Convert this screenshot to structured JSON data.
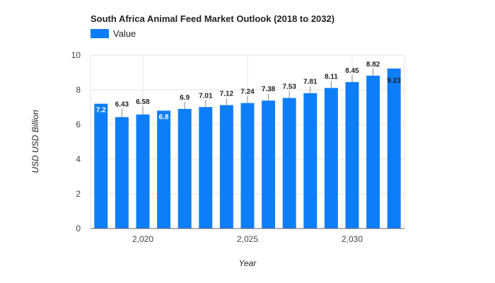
{
  "chart_data": {
    "type": "bar",
    "title": "South Africa Animal Feed Market Outlook (2018 to 2032)",
    "xlabel": "Year",
    "ylabel": "USD USD Billion",
    "legend": {
      "position": "top-left",
      "entries": [
        "Value"
      ]
    },
    "grid": true,
    "ylim": [
      0,
      10
    ],
    "yticks": [
      0,
      2,
      4,
      6,
      8,
      10
    ],
    "xlim": [
      2017.5,
      2032.5
    ],
    "xticks": [
      2020,
      2025,
      2030
    ],
    "xtick_labels": [
      "2,020",
      "2,025",
      "2,030"
    ],
    "colors": {
      "bar": "#0d7ef7",
      "grid": "#e6e6e6",
      "axis": "#666666"
    },
    "series": [
      {
        "name": "Value",
        "x": [
          2018,
          2019,
          2020,
          2021,
          2022,
          2023,
          2024,
          2025,
          2026,
          2027,
          2028,
          2029,
          2030,
          2031,
          2032
        ],
        "values": [
          7.2,
          6.43,
          6.58,
          6.8,
          6.9,
          7.01,
          7.12,
          7.24,
          7.38,
          7.53,
          7.81,
          8.11,
          8.45,
          8.82,
          9.23
        ],
        "labels": [
          "7.2",
          "6.43",
          "6.58",
          "6.8",
          "6.9",
          "7.01",
          "7.12",
          "7.24",
          "7.38",
          "7.53",
          "7.81",
          "8.11",
          "8.45",
          "8.82",
          "9.23"
        ]
      }
    ]
  }
}
